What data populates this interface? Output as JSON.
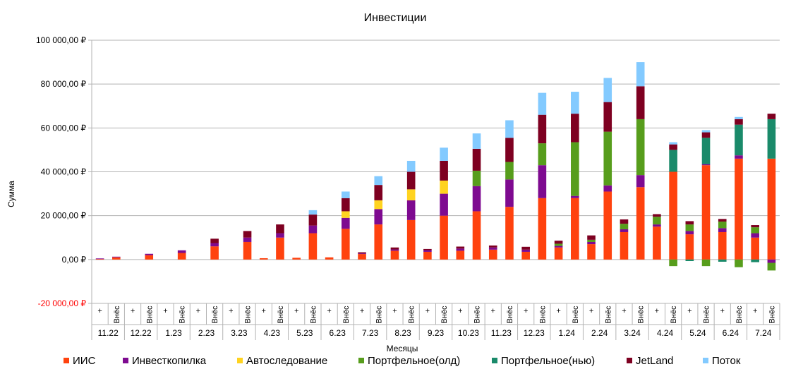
{
  "chart_data": {
    "type": "bar",
    "stacked": true,
    "title": "Инвестиции",
    "xlabel": "Месяцы",
    "ylabel": "Сумма",
    "ylim": [
      -20000,
      100000
    ],
    "yticks": [
      -20000,
      0,
      20000,
      40000,
      60000,
      80000,
      100000
    ],
    "ytick_labels": [
      "-20 000,00 ₽",
      "0,00 ₽",
      "20 000,00 ₽",
      "40 000,00 ₽",
      "60 000,00 ₽",
      "80 000,00 ₽",
      "100 000,00 ₽"
    ],
    "grid": true,
    "legend_position": "bottom",
    "months": [
      "11.22",
      "12.22",
      "1.23",
      "2.23",
      "3.23",
      "4.23",
      "5.23",
      "6.23",
      "7.23",
      "8.23",
      "9.23",
      "10.23",
      "11.23",
      "12.23",
      "1.24",
      "2.24",
      "3.24",
      "4.24",
      "5.24",
      "6.24",
      "7.24"
    ],
    "sub_categories": [
      "+",
      "Внёс"
    ],
    "series": [
      {
        "name": "ИИС",
        "color": "#ff420e",
        "values": [
          200,
          1000,
          0,
          2000,
          0,
          3000,
          0,
          6000,
          0,
          8000,
          600,
          10000,
          800,
          12000,
          1000,
          14000,
          2500,
          16000,
          4000,
          18000,
          3500,
          20000,
          4000,
          22000,
          4500,
          24000,
          3500,
          28000,
          5500,
          28000,
          7000,
          31000,
          12500,
          33000,
          15000,
          40000,
          11500,
          43000,
          12500,
          46000,
          10000,
          46000
        ]
      },
      {
        "name": "Инвесткопилка",
        "color": "#7e0a90",
        "values": [
          300,
          300,
          0,
          600,
          0,
          1200,
          0,
          1500,
          0,
          2000,
          0,
          2000,
          0,
          3500,
          0,
          5000,
          300,
          7000,
          600,
          9000,
          800,
          10000,
          1000,
          11500,
          1000,
          12500,
          1000,
          15000,
          700,
          1000,
          1000,
          2800,
          1300,
          5500,
          1000,
          0,
          1500,
          500,
          1800,
          1500,
          2000,
          -1500
        ]
      },
      {
        "name": "Автоследование",
        "color": "#ffd320",
        "values": [
          0,
          0,
          0,
          0,
          0,
          0,
          0,
          0,
          0,
          0,
          0,
          0,
          0,
          0,
          0,
          3000,
          0,
          4000,
          0,
          5000,
          0,
          6000,
          0,
          0,
          0,
          0,
          0,
          0,
          0,
          0,
          0,
          0,
          0,
          0,
          0,
          0,
          0,
          0,
          0,
          0,
          0,
          0
        ]
      },
      {
        "name": "Портфельное(олд)",
        "color": "#579d1c",
        "values": [
          0,
          0,
          0,
          0,
          0,
          0,
          0,
          0,
          0,
          0,
          0,
          0,
          0,
          0,
          0,
          0,
          0,
          0,
          0,
          0,
          0,
          0,
          0,
          7000,
          0,
          8000,
          0,
          10000,
          1000,
          24500,
          1000,
          24500,
          2500,
          25500,
          3500,
          -3000,
          3000,
          -3000,
          3000,
          -3500,
          2700,
          -3500
        ]
      },
      {
        "name": "Портфельное(нью)",
        "color": "#1a8a6a",
        "values": [
          0,
          0,
          0,
          0,
          0,
          0,
          0,
          0,
          0,
          0,
          0,
          0,
          0,
          0,
          0,
          0,
          0,
          0,
          0,
          0,
          0,
          0,
          0,
          0,
          0,
          0,
          0,
          0,
          0,
          0,
          0,
          0,
          0,
          0,
          0,
          10000,
          -700,
          12000,
          -1000,
          14000,
          -1200,
          18000
        ]
      },
      {
        "name": "JetLand",
        "color": "#7e0021",
        "values": [
          0,
          0,
          0,
          0,
          0,
          0,
          0,
          2000,
          0,
          3000,
          0,
          4000,
          0,
          5000,
          0,
          6000,
          500,
          7000,
          900,
          8000,
          500,
          9000,
          900,
          10000,
          900,
          11000,
          1300,
          13000,
          1400,
          13000,
          2000,
          13500,
          2000,
          15000,
          1200,
          2500,
          1500,
          2500,
          1200,
          2500,
          1000,
          2500
        ]
      },
      {
        "name": "Поток",
        "color": "#83caff",
        "values": [
          0,
          0,
          0,
          0,
          0,
          0,
          0,
          0,
          0,
          0,
          0,
          0,
          0,
          2000,
          0,
          3000,
          0,
          4000,
          0,
          5000,
          0,
          6000,
          0,
          7000,
          0,
          8000,
          0,
          10000,
          0,
          10000,
          0,
          11000,
          0,
          11000,
          0,
          1000,
          0,
          1000,
          0,
          1000,
          0,
          0
        ]
      }
    ]
  }
}
